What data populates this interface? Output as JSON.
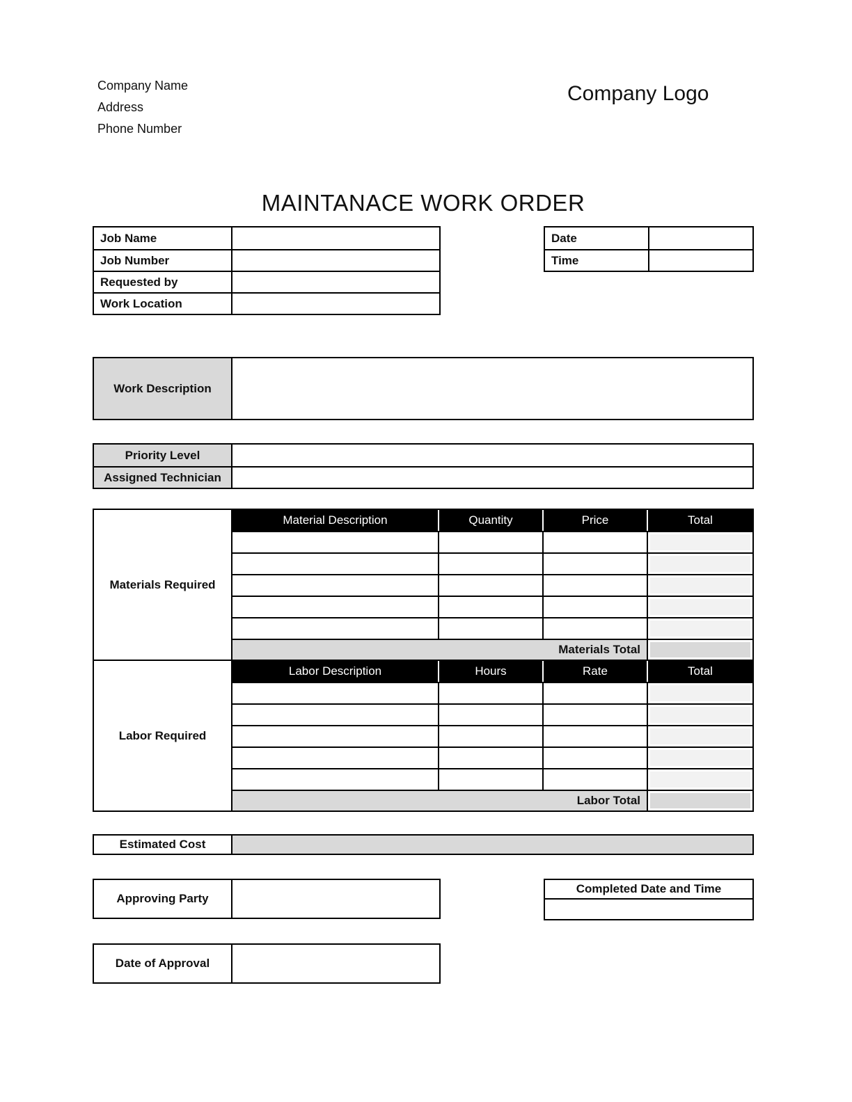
{
  "header": {
    "company_name": "Company Name",
    "company_address": "Address",
    "company_phone": "Phone Number",
    "company_logo": "Company Logo"
  },
  "title": "MAINTANACE WORK ORDER",
  "job_table": {
    "rows": [
      {
        "label": "Job Name",
        "value": ""
      },
      {
        "label": "Job Number",
        "value": ""
      },
      {
        "label": "Requested by",
        "value": ""
      },
      {
        "label": "Work Location",
        "value": ""
      }
    ]
  },
  "datetime_table": {
    "rows": [
      {
        "label": "Date",
        "value": ""
      },
      {
        "label": "Time",
        "value": ""
      }
    ]
  },
  "work_description": {
    "label": "Work Description",
    "value": ""
  },
  "priority_table": {
    "rows": [
      {
        "label": "Priority Level",
        "value": ""
      },
      {
        "label": "Assigned Technician",
        "value": ""
      }
    ]
  },
  "materials": {
    "section_label": "Materials Required",
    "columns": [
      "Material Description",
      "Quantity",
      "Price",
      "Total"
    ],
    "empty_row_count": 5,
    "total_label": "Materials Total",
    "total_value": ""
  },
  "labor": {
    "section_label": "Labor Required",
    "columns": [
      "Labor Description",
      "Hours",
      "Rate",
      "Total"
    ],
    "empty_row_count": 5,
    "total_label": "Labor Total",
    "total_value": ""
  },
  "estimated_cost": {
    "label": "Estimated Cost",
    "value": ""
  },
  "approving_party": {
    "label": "Approving Party",
    "value": ""
  },
  "completed": {
    "label": "Completed Date and Time",
    "value": ""
  },
  "date_of_approval": {
    "label": "Date of Approval",
    "value": ""
  },
  "colors": {
    "table_header_bg": "#000000",
    "label_gray": "#d9d9d9",
    "total_column_gray": "#f2f2f2",
    "total_row_gray": "#d9d9d9"
  }
}
